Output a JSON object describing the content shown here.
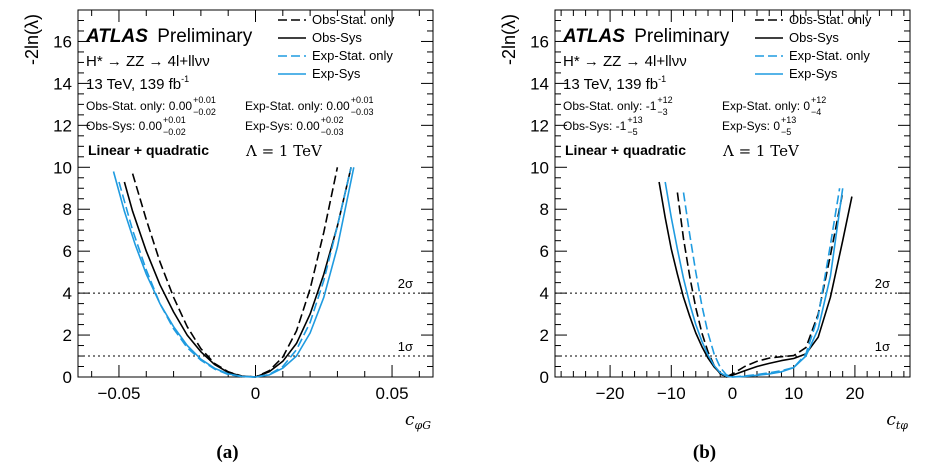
{
  "chart_data": [
    {
      "type": "line",
      "panel_label": "(a)",
      "ylabel": "-2ln(λ)",
      "xlabel_main": "c",
      "xlabel_sub": "φG",
      "xlim": [
        -0.065,
        0.065
      ],
      "ylim": [
        0,
        17.5
      ],
      "x_ticks": [
        {
          "v": -0.05,
          "label": "−0.05"
        },
        {
          "v": 0,
          "label": "0"
        },
        {
          "v": 0.05,
          "label": "0.05"
        }
      ],
      "y_ticks": [
        0,
        2,
        4,
        6,
        8,
        10,
        12,
        14,
        16
      ],
      "brand": "ATLAS",
      "status": "Preliminary",
      "process": "H* → ZZ → 4l+llνν",
      "lumi_text": "13 TeV, 139 fb",
      "lumi_sup": "-1",
      "results": [
        {
          "label": "Obs-Stat. only: 0.00",
          "sup": "+0.01",
          "sub": "−0.02"
        },
        {
          "label": "Obs-Sys: 0.00",
          "sup": "+0.01",
          "sub": "−0.02"
        },
        {
          "label": "Exp-Stat. only: 0.00",
          "sup": "+0.01",
          "sub": "−0.03"
        },
        {
          "label": "Exp-Sys: 0.00",
          "sup": "+0.02",
          "sub": "−0.03"
        }
      ],
      "fit_label": "Linear + quadratic",
      "lambda_label": "Λ = 1 TeV",
      "sigma_lines": [
        {
          "y": 1,
          "label": "1σ"
        },
        {
          "y": 4,
          "label": "2σ"
        }
      ],
      "legend": [
        "Obs-Stat. only",
        "Obs-Sys",
        "Exp-Stat. only",
        "Exp-Sys"
      ],
      "series": [
        {
          "name": "Obs-Stat. only",
          "color": "#000000",
          "dash": true,
          "x": [
            -0.045,
            -0.04,
            -0.035,
            -0.03,
            -0.025,
            -0.02,
            -0.015,
            -0.01,
            -0.005,
            0.0,
            0.005,
            0.01,
            0.015,
            0.02,
            0.025,
            0.03
          ],
          "y": [
            9.7,
            7.5,
            5.5,
            3.8,
            2.4,
            1.35,
            0.65,
            0.25,
            0.05,
            0.0,
            0.3,
            0.95,
            2.2,
            4.2,
            6.9,
            10.0
          ]
        },
        {
          "name": "Obs-Sys",
          "color": "#000000",
          "dash": false,
          "x": [
            -0.048,
            -0.045,
            -0.04,
            -0.035,
            -0.03,
            -0.025,
            -0.02,
            -0.015,
            -0.01,
            -0.005,
            0.0,
            0.005,
            0.01,
            0.015,
            0.02,
            0.025,
            0.03,
            0.035
          ],
          "y": [
            9.3,
            7.9,
            6.0,
            4.4,
            3.1,
            2.0,
            1.2,
            0.6,
            0.22,
            0.04,
            0.0,
            0.25,
            0.75,
            1.6,
            3.0,
            4.9,
            7.2,
            10.0
          ]
        },
        {
          "name": "Exp-Stat. only",
          "color": "#1f9be0",
          "dash": true,
          "x": [
            -0.05,
            -0.045,
            -0.04,
            -0.035,
            -0.03,
            -0.025,
            -0.02,
            -0.015,
            -0.01,
            -0.005,
            0.0,
            0.005,
            0.01,
            0.015,
            0.02,
            0.025,
            0.03,
            0.035
          ],
          "y": [
            9.3,
            7.0,
            5.1,
            3.5,
            2.3,
            1.4,
            0.8,
            0.38,
            0.12,
            0.02,
            0.0,
            0.12,
            0.5,
            1.3,
            2.6,
            4.6,
            7.2,
            10.0
          ]
        },
        {
          "name": "Exp-Sys",
          "color": "#1f9be0",
          "dash": false,
          "x": [
            -0.052,
            -0.048,
            -0.044,
            -0.04,
            -0.035,
            -0.03,
            -0.025,
            -0.02,
            -0.015,
            -0.01,
            -0.005,
            0.0,
            0.005,
            0.01,
            0.015,
            0.02,
            0.025,
            0.03,
            0.036
          ],
          "y": [
            9.8,
            7.9,
            6.3,
            4.9,
            3.5,
            2.4,
            1.5,
            0.85,
            0.42,
            0.15,
            0.03,
            0.0,
            0.1,
            0.42,
            1.0,
            2.1,
            3.8,
            6.2,
            10.0
          ]
        }
      ]
    },
    {
      "type": "line",
      "panel_label": "(b)",
      "ylabel": "-2ln(λ)",
      "xlabel_main": "c",
      "xlabel_sub": "tφ",
      "xlim": [
        -29,
        29
      ],
      "ylim": [
        0,
        17.5
      ],
      "x_ticks": [
        {
          "v": -20,
          "label": "−20"
        },
        {
          "v": -10,
          "label": "−10"
        },
        {
          "v": 0,
          "label": "0"
        },
        {
          "v": 10,
          "label": "10"
        },
        {
          "v": 20,
          "label": "20"
        }
      ],
      "y_ticks": [
        0,
        2,
        4,
        6,
        8,
        10,
        12,
        14,
        16
      ],
      "brand": "ATLAS",
      "status": "Preliminary",
      "process": "H* → ZZ → 4l+llνν",
      "lumi_text": "13 TeV, 139 fb",
      "lumi_sup": "-1",
      "results": [
        {
          "label": "Obs-Stat. only: -1",
          "sup": "+12",
          "sub": "−3"
        },
        {
          "label": "Obs-Sys: -1",
          "sup": "+13",
          "sub": "−5"
        },
        {
          "label": "Exp-Stat. only: 0",
          "sup": "+12",
          "sub": "−4"
        },
        {
          "label": "Exp-Sys: 0",
          "sup": "+13",
          "sub": "−5"
        }
      ],
      "fit_label": "Linear + quadratic",
      "lambda_label": "Λ = 1 TeV",
      "sigma_lines": [
        {
          "y": 1,
          "label": "1σ"
        },
        {
          "y": 4,
          "label": "2σ"
        }
      ],
      "legend": [
        "Obs-Stat. only",
        "Obs-Sys",
        "Exp-Stat. only",
        "Exp-Sys"
      ],
      "series": [
        {
          "name": "Obs-Stat. only",
          "color": "#000000",
          "dash": true,
          "x": [
            -9,
            -8,
            -7,
            -6,
            -5,
            -4,
            -3,
            -2,
            -1,
            0,
            2,
            4,
            6,
            8,
            10,
            12,
            14,
            16,
            18
          ],
          "y": [
            8.8,
            6.6,
            4.8,
            3.3,
            2.1,
            1.2,
            0.55,
            0.15,
            0.0,
            0.15,
            0.5,
            0.75,
            0.9,
            0.97,
            1.02,
            1.4,
            3.0,
            5.8,
            8.8
          ]
        },
        {
          "name": "Obs-Sys",
          "color": "#000000",
          "dash": false,
          "x": [
            -12,
            -11,
            -10,
            -9,
            -8,
            -7,
            -6,
            -5,
            -4,
            -3,
            -2,
            -1,
            0,
            2,
            4,
            6,
            8,
            10,
            12,
            14,
            16,
            18,
            19.5
          ],
          "y": [
            9.3,
            7.6,
            6.1,
            4.9,
            3.8,
            2.9,
            2.1,
            1.45,
            0.9,
            0.48,
            0.18,
            0.0,
            0.08,
            0.3,
            0.5,
            0.65,
            0.78,
            0.88,
            1.1,
            1.9,
            3.8,
            6.5,
            8.6
          ]
        },
        {
          "name": "Exp-Stat. only",
          "color": "#1f9be0",
          "dash": true,
          "x": [
            -8,
            -7,
            -6,
            -5,
            -4,
            -3,
            -2,
            -1,
            0,
            2,
            4,
            6,
            8,
            10,
            12,
            14,
            16,
            17.5
          ],
          "y": [
            8.8,
            6.8,
            5.0,
            3.4,
            2.1,
            1.1,
            0.45,
            0.1,
            0.0,
            0.05,
            0.12,
            0.2,
            0.3,
            0.45,
            1.1,
            2.9,
            6.3,
            9.0
          ]
        },
        {
          "name": "Exp-Sys",
          "color": "#1f9be0",
          "dash": false,
          "x": [
            -11,
            -10,
            -9,
            -8,
            -7,
            -6,
            -5,
            -4,
            -3,
            -2,
            -1,
            0,
            2,
            4,
            6,
            8,
            10,
            12,
            14,
            16,
            18
          ],
          "y": [
            9.3,
            7.6,
            6.1,
            4.7,
            3.5,
            2.5,
            1.7,
            1.05,
            0.55,
            0.2,
            0.04,
            0.0,
            0.03,
            0.08,
            0.15,
            0.25,
            0.45,
            1.0,
            2.3,
            4.8,
            9.0
          ]
        }
      ]
    }
  ]
}
